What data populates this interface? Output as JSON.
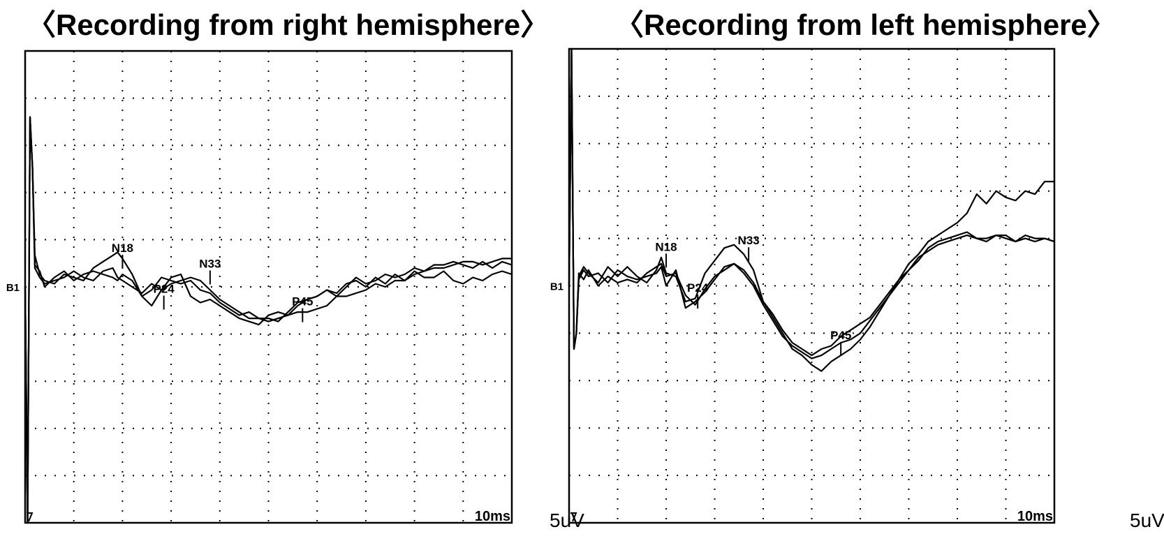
{
  "chart_data": [
    {
      "type": "line",
      "title": "〈Recording from right hemisphere〉",
      "xlabel": "",
      "ylabel": "",
      "x_scale_label": "10ms",
      "y_scale_label": "5uV",
      "baseline_label": "B1",
      "grid": true,
      "xlim": [
        0,
        100
      ],
      "ylim": [
        -7.5,
        7.5
      ],
      "x": [
        0,
        0.5,
        1,
        1.5,
        2,
        3,
        4,
        6,
        8,
        10,
        12,
        14,
        16,
        18,
        19,
        20,
        22,
        24,
        26,
        28,
        30,
        32,
        34,
        36,
        38,
        40,
        42,
        44,
        46,
        48,
        50,
        52,
        54,
        56,
        58,
        60,
        62,
        64,
        66,
        68,
        70,
        72,
        74,
        76,
        78,
        80,
        82,
        84,
        86,
        88,
        90,
        92,
        94,
        96,
        98,
        100
      ],
      "series": [
        {
          "values": [
            0,
            -7.5,
            5.4,
            3.8,
            1.0,
            0.4,
            0.2,
            0.1,
            0.4,
            0.3,
            0.2,
            0.6,
            0.8,
            1.0,
            1.1,
            0.9,
            0.4,
            -0.3,
            -0.6,
            -0.1,
            0.1,
            0.2,
            0.3,
            0.2,
            -0.1,
            -0.4,
            -0.6,
            -0.8,
            -1.0,
            -1.0,
            -1.1,
            -1.0,
            -0.9,
            -0.8,
            -0.8,
            -0.7,
            -0.6,
            -0.3,
            -0.3,
            -0.2,
            -0.1,
            0.1,
            0.0,
            0.2,
            0.2,
            0.4,
            0.5,
            0.6,
            0.6,
            0.7,
            0.8,
            0.8,
            0.7,
            0.8,
            0.9,
            0.9
          ]
        },
        {
          "values": [
            0,
            -7.5,
            5.4,
            3.8,
            0.7,
            0.5,
            0.0,
            0.3,
            0.5,
            0.2,
            0.4,
            0.5,
            0.4,
            0.3,
            0.2,
            0.4,
            0.2,
            -0.3,
            -0.1,
            0.3,
            0.2,
            0.1,
            0.2,
            -0.1,
            -0.2,
            -0.5,
            -0.7,
            -0.9,
            -0.8,
            -1.0,
            -1.0,
            -1.1,
            -0.8,
            -0.5,
            -0.4,
            -0.3,
            -0.1,
            -0.3,
            0.0,
            0.3,
            0.1,
            0.2,
            0.4,
            0.3,
            0.4,
            0.6,
            0.5,
            0.7,
            0.7,
            0.8,
            0.7,
            0.6,
            0.8,
            0.6,
            0.8,
            0.7
          ]
        },
        {
          "values": [
            0,
            -7.5,
            5.4,
            3.8,
            0.6,
            0.3,
            0.1,
            0.2,
            0.3,
            0.5,
            0.3,
            0.2,
            0.5,
            0.6,
            0.3,
            0.2,
            0.0,
            -0.2,
            0.1,
            -0.1,
            0.3,
            0.4,
            -0.3,
            -0.5,
            -0.4,
            -0.6,
            -0.8,
            -1.0,
            -1.1,
            -1.2,
            -0.9,
            -0.8,
            -0.9,
            -0.6,
            -0.4,
            -0.3,
            -0.1,
            -0.2,
            0.1,
            0.2,
            0.0,
            0.3,
            0.1,
            0.4,
            0.2,
            0.5,
            0.3,
            0.3,
            0.5,
            0.2,
            0.1,
            0.3,
            0.2,
            0.4,
            0.5,
            0.4
          ]
        }
      ],
      "annotations": [
        {
          "label": "N18",
          "x": 20,
          "y": 0.8
        },
        {
          "label": "P24",
          "x": 28.5,
          "y": -0.5
        },
        {
          "label": "N33",
          "x": 38,
          "y": 0.3
        },
        {
          "label": "P45",
          "x": 57,
          "y": -0.9
        }
      ]
    },
    {
      "type": "line",
      "title": "〈Recording from left hemisphere〉",
      "xlabel": "",
      "ylabel": "",
      "x_scale_label": "10ms",
      "y_scale_label": "5uV",
      "baseline_label": "B1",
      "grid": true,
      "xlim": [
        0,
        100
      ],
      "ylim": [
        -7.5,
        7.5
      ],
      "x": [
        0,
        0.5,
        1,
        1.5,
        2,
        3,
        4,
        6,
        8,
        10,
        12,
        14,
        16,
        18,
        19,
        20,
        22,
        24,
        26,
        28,
        30,
        32,
        34,
        36,
        38,
        40,
        42,
        44,
        46,
        48,
        50,
        52,
        54,
        56,
        58,
        60,
        62,
        64,
        66,
        68,
        70,
        72,
        74,
        76,
        78,
        80,
        82,
        84,
        86,
        88,
        90,
        92,
        94,
        96,
        98,
        100
      ],
      "series": [
        {
          "values": [
            0,
            7.5,
            -2.0,
            -1.5,
            0.3,
            0.6,
            0.4,
            0.1,
            0.6,
            0.3,
            0.6,
            0.3,
            0.1,
            0.5,
            0.9,
            0.4,
            0.3,
            -0.5,
            -0.4,
            0.4,
            0.8,
            1.2,
            1.3,
            1.0,
            0.5,
            -0.5,
            -1.0,
            -1.5,
            -2.0,
            -2.2,
            -2.5,
            -2.7,
            -2.4,
            -2.2,
            -2.0,
            -1.7,
            -1.3,
            -0.8,
            -0.3,
            0.2,
            0.7,
            1.0,
            1.4,
            1.6,
            1.8,
            2.0,
            2.3,
            2.9,
            2.6,
            3.0,
            2.8,
            2.7,
            3.0,
            2.9,
            3.3,
            3.3
          ]
        },
        {
          "values": [
            0,
            7.5,
            -2.0,
            -1.5,
            0.2,
            0.5,
            0.3,
            0.4,
            0.1,
            0.5,
            0.3,
            0.2,
            0.3,
            0.4,
            0.6,
            0.0,
            0.5,
            -0.7,
            -0.5,
            -0.2,
            0.2,
            0.6,
            0.7,
            0.4,
            0.0,
            -0.6,
            -1.1,
            -1.6,
            -1.9,
            -2.1,
            -2.3,
            -2.2,
            -2.0,
            -1.8,
            -1.7,
            -1.5,
            -1.1,
            -0.7,
            -0.3,
            0.1,
            0.5,
            0.8,
            1.2,
            1.4,
            1.5,
            1.6,
            1.7,
            1.5,
            1.5,
            1.6,
            1.6,
            1.4,
            1.5,
            1.4,
            1.5,
            1.4
          ]
        },
        {
          "values": [
            0,
            7.5,
            -2.0,
            -1.5,
            0.4,
            0.2,
            0.5,
            0.0,
            0.3,
            0.1,
            0.2,
            0.1,
            0.4,
            0.6,
            0.7,
            0.3,
            0.4,
            -0.3,
            -0.6,
            -0.1,
            0.3,
            0.5,
            0.7,
            0.5,
            0.1,
            -0.5,
            -0.9,
            -1.4,
            -1.8,
            -2.0,
            -2.2,
            -2.0,
            -1.9,
            -1.6,
            -1.4,
            -1.2,
            -1.0,
            -0.6,
            -0.2,
            0.2,
            0.5,
            0.9,
            1.1,
            1.3,
            1.4,
            1.5,
            1.6,
            1.5,
            1.4,
            1.6,
            1.5,
            1.4,
            1.6,
            1.5,
            1.5,
            1.4
          ]
        }
      ],
      "annotations": [
        {
          "label": "N18",
          "x": 20,
          "y": 0.8
        },
        {
          "label": "P24",
          "x": 26.5,
          "y": -0.5
        },
        {
          "label": "N33",
          "x": 37,
          "y": 1.0
        },
        {
          "label": "P45",
          "x": 56,
          "y": -2.0
        }
      ]
    }
  ]
}
